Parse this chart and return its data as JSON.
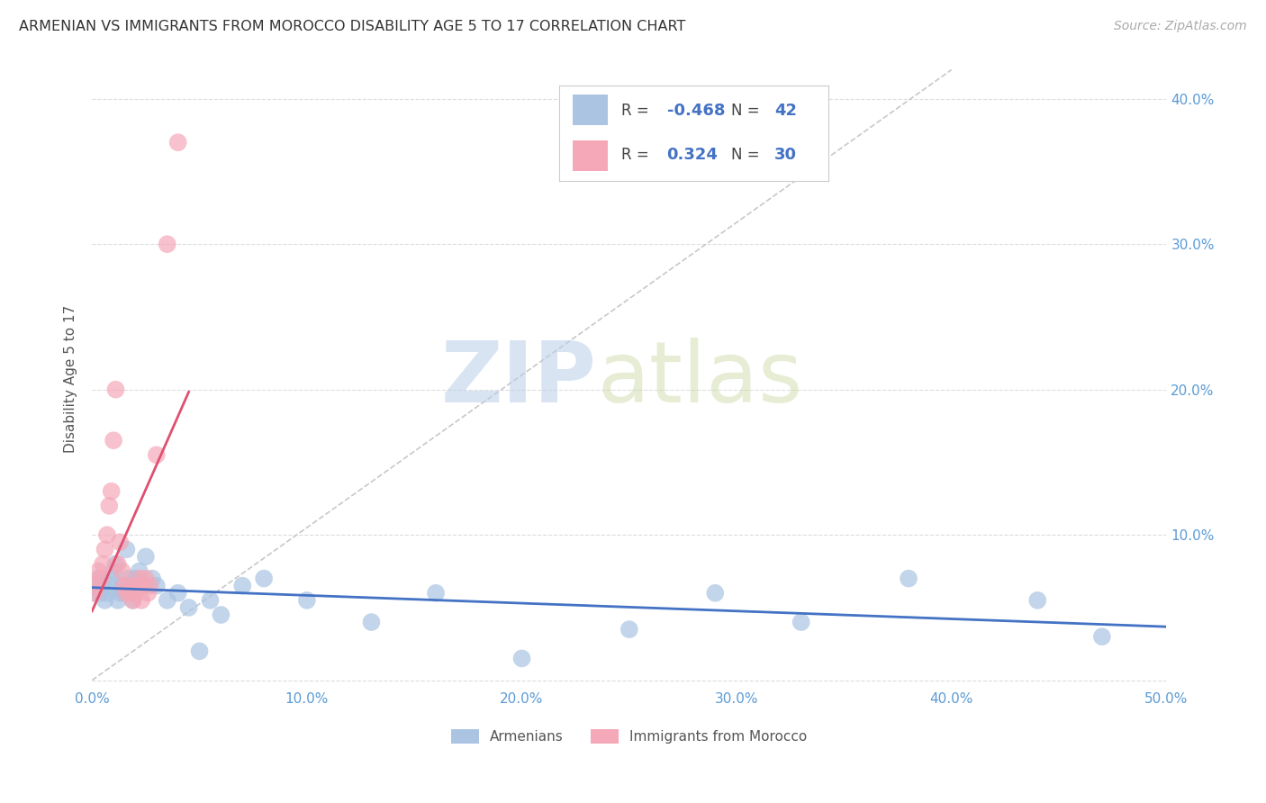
{
  "title": "ARMENIAN VS IMMIGRANTS FROM MOROCCO DISABILITY AGE 5 TO 17 CORRELATION CHART",
  "source": "Source: ZipAtlas.com",
  "ylabel": "Disability Age 5 to 17",
  "xlim": [
    0.0,
    0.5
  ],
  "ylim": [
    -0.005,
    0.42
  ],
  "xticks": [
    0.0,
    0.1,
    0.2,
    0.3,
    0.4,
    0.5
  ],
  "yticks": [
    0.0,
    0.1,
    0.2,
    0.3,
    0.4
  ],
  "xtick_labels": [
    "0.0%",
    "10.0%",
    "20.0%",
    "30.0%",
    "40.0%",
    "50.0%"
  ],
  "ytick_labels": [
    "",
    "10.0%",
    "20.0%",
    "30.0%",
    "40.0%"
  ],
  "watermark_zip": "ZIP",
  "watermark_atlas": "atlas",
  "color_armenian": "#aac4e2",
  "color_morocco": "#f4a8b8",
  "color_line_armenian": "#4472c4",
  "color_line_morocco": "#e05070",
  "color_trend_dashed": "#c8c8c8",
  "background_color": "#ffffff",
  "tick_color_x": "#5b9bd5",
  "tick_color_y": "#5b9bd5",
  "legend_label1": "Armenians",
  "legend_label2": "Immigrants from Morocco",
  "armenian_x": [
    0.001,
    0.002,
    0.003,
    0.004,
    0.005,
    0.006,
    0.007,
    0.008,
    0.009,
    0.01,
    0.011,
    0.012,
    0.013,
    0.014,
    0.015,
    0.016,
    0.017,
    0.018,
    0.019,
    0.02,
    0.022,
    0.025,
    0.028,
    0.03,
    0.035,
    0.04,
    0.045,
    0.05,
    0.055,
    0.06,
    0.07,
    0.08,
    0.1,
    0.13,
    0.16,
    0.2,
    0.25,
    0.29,
    0.33,
    0.38,
    0.44,
    0.47
  ],
  "armenian_y": [
    0.06,
    0.065,
    0.07,
    0.06,
    0.065,
    0.055,
    0.06,
    0.065,
    0.07,
    0.075,
    0.08,
    0.055,
    0.06,
    0.065,
    0.06,
    0.09,
    0.07,
    0.065,
    0.055,
    0.07,
    0.075,
    0.085,
    0.07,
    0.065,
    0.055,
    0.06,
    0.05,
    0.02,
    0.055,
    0.045,
    0.065,
    0.07,
    0.055,
    0.04,
    0.06,
    0.015,
    0.035,
    0.06,
    0.04,
    0.07,
    0.055,
    0.03
  ],
  "morocco_x": [
    0.001,
    0.002,
    0.003,
    0.004,
    0.005,
    0.006,
    0.007,
    0.008,
    0.009,
    0.01,
    0.011,
    0.012,
    0.013,
    0.014,
    0.015,
    0.016,
    0.017,
    0.018,
    0.019,
    0.02,
    0.021,
    0.022,
    0.023,
    0.024,
    0.025,
    0.026,
    0.027,
    0.03,
    0.035,
    0.04
  ],
  "morocco_y": [
    0.06,
    0.065,
    0.075,
    0.07,
    0.08,
    0.09,
    0.1,
    0.12,
    0.13,
    0.165,
    0.2,
    0.08,
    0.095,
    0.075,
    0.065,
    0.06,
    0.065,
    0.06,
    0.055,
    0.06,
    0.065,
    0.07,
    0.055,
    0.065,
    0.07,
    0.06,
    0.065,
    0.155,
    0.3,
    0.37
  ]
}
